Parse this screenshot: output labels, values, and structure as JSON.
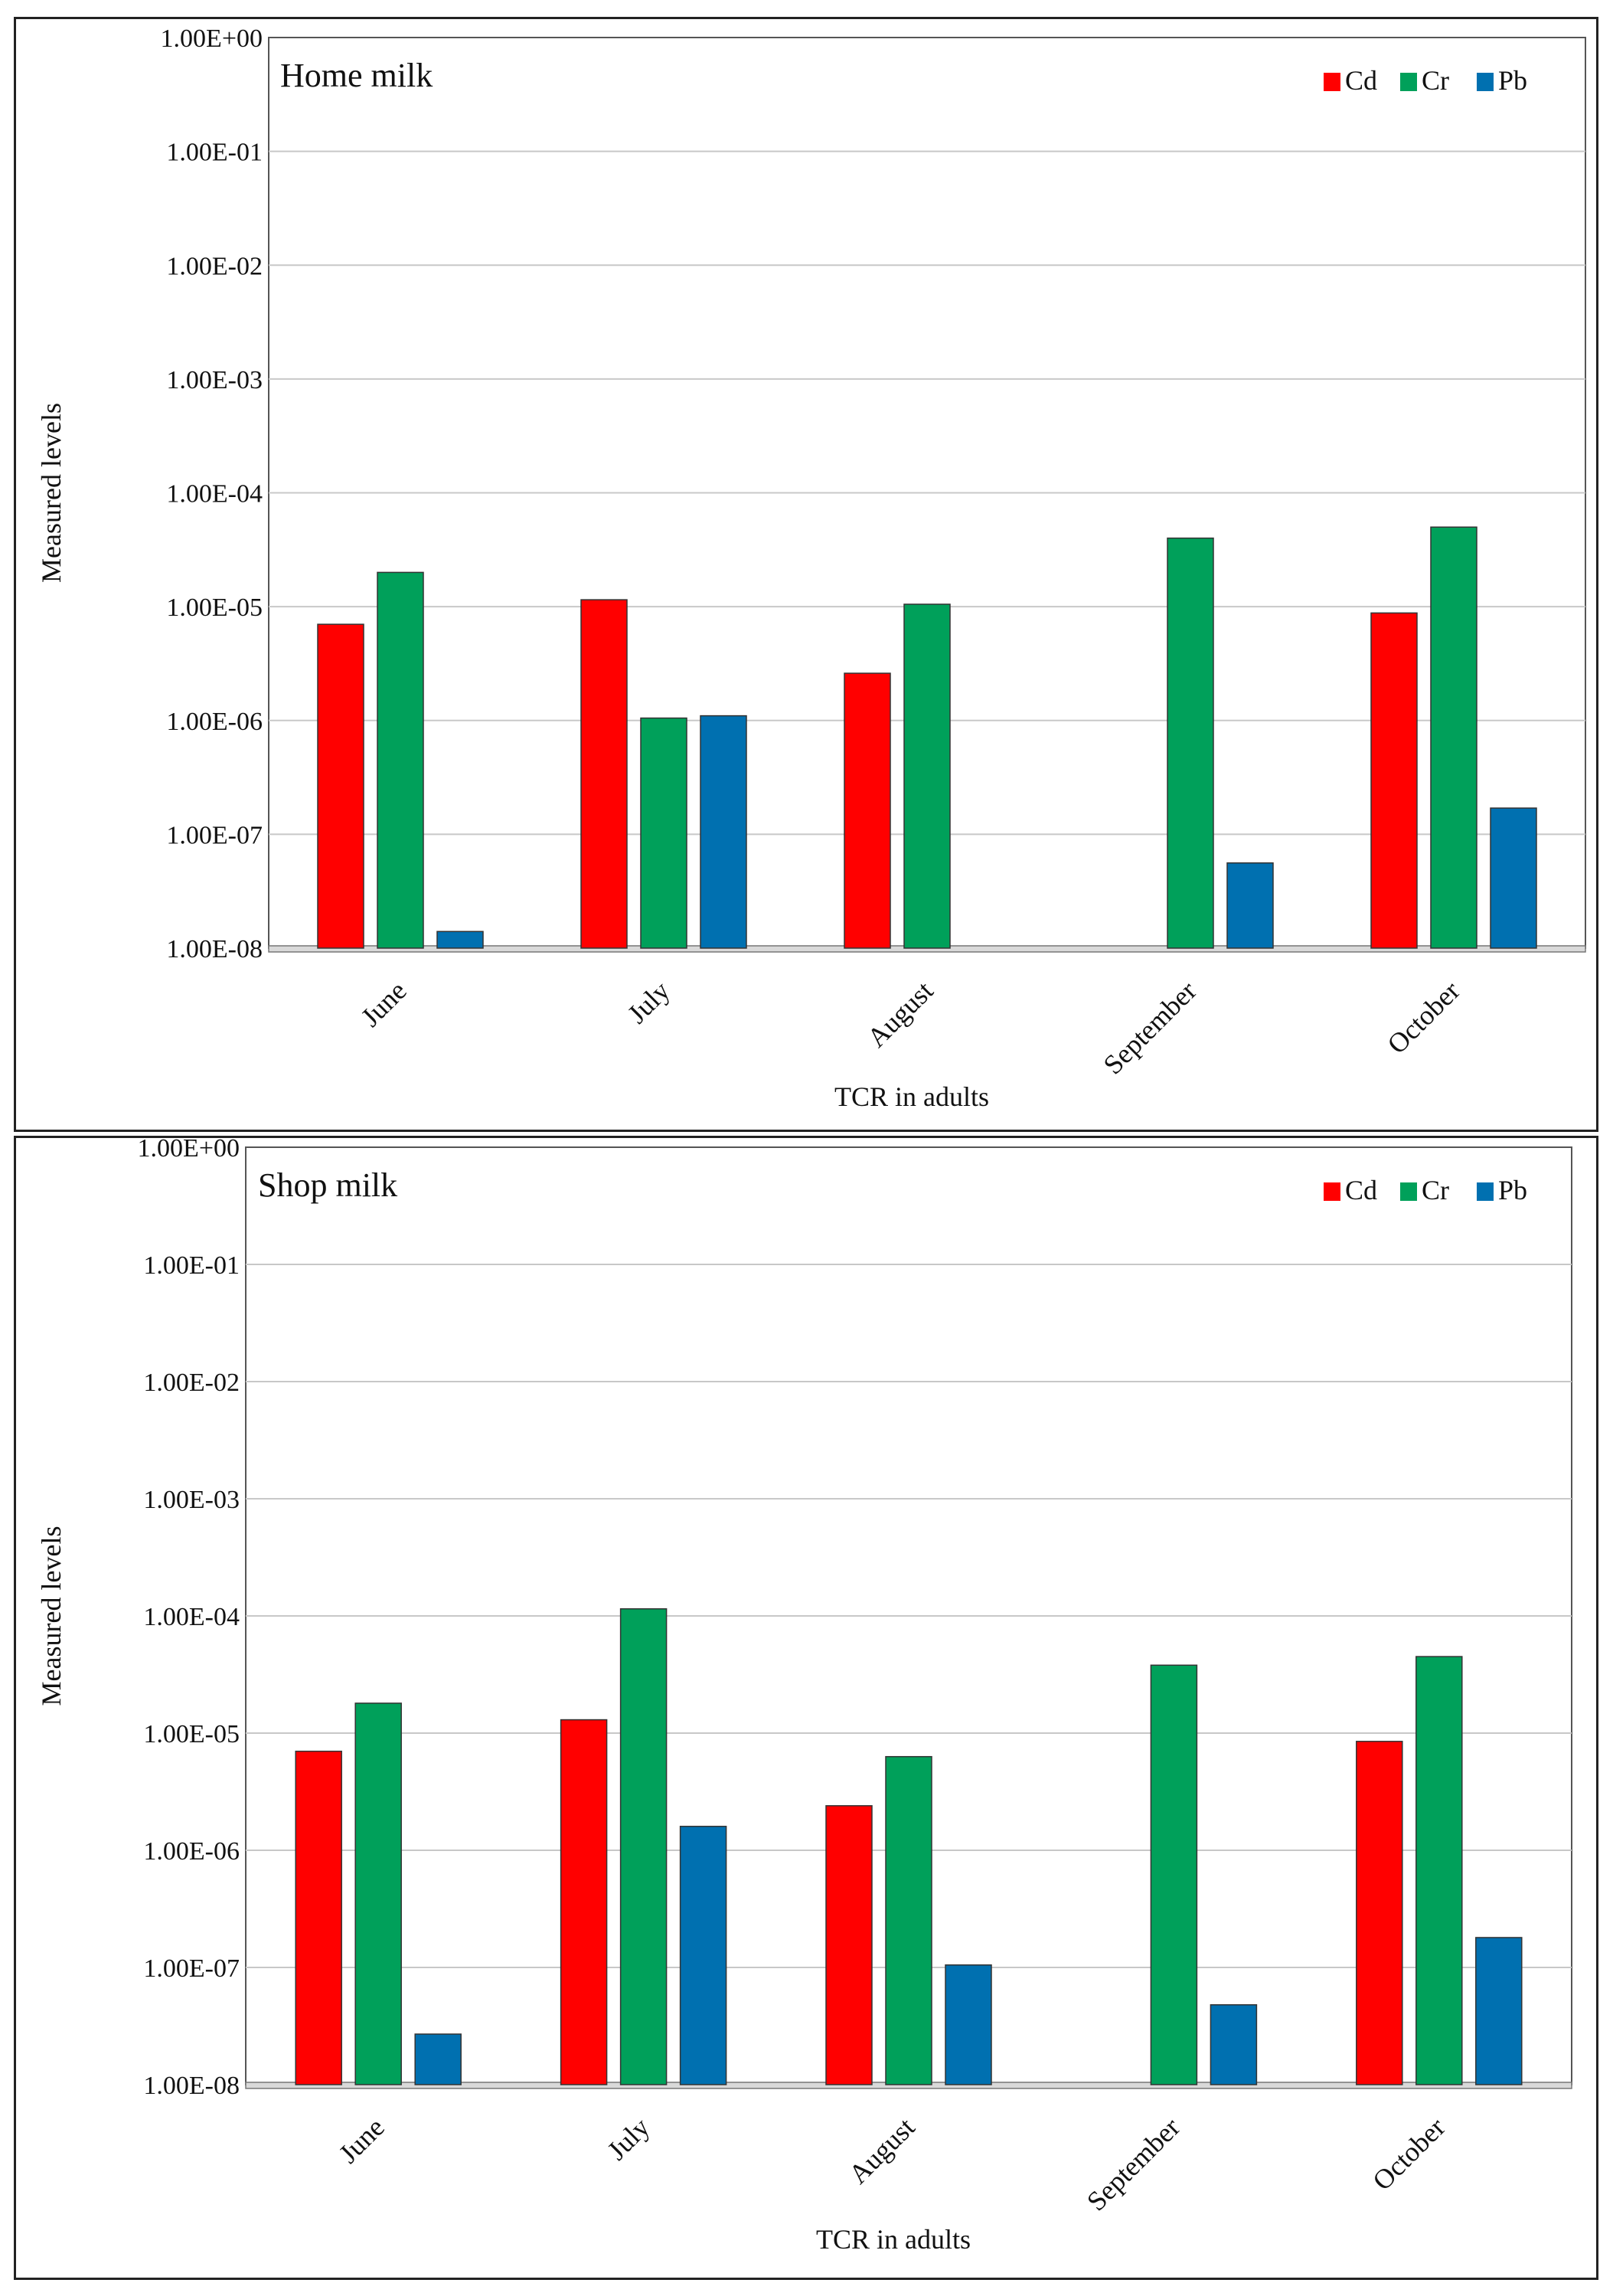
{
  "chart_data": [
    {
      "type": "bar",
      "title": "Home milk",
      "xlabel": "TCR in adults",
      "ylabel": "Measured levels",
      "yscale": "log",
      "ylim": [
        1e-08,
        1
      ],
      "yticks": [
        "1.00E-08",
        "1.00E-07",
        "1.00E-06",
        "1.00E-05",
        "1.00E-04",
        "1.00E-03",
        "1.00E-02",
        "1.00E-01",
        "1.00E+00"
      ],
      "legend_position": "top-right",
      "categories": [
        "June",
        "July",
        "August",
        "September",
        "October"
      ],
      "series": [
        {
          "name": "Cd",
          "color": "#ff0000",
          "values": [
            7e-06,
            1.15e-05,
            2.6e-06,
            null,
            8.8e-06
          ]
        },
        {
          "name": "Cr",
          "color": "#00a05a",
          "values": [
            2e-05,
            1.05e-06,
            1.05e-05,
            4e-05,
            5e-05
          ]
        },
        {
          "name": "Pb",
          "color": "#0070b0",
          "values": [
            1.4e-08,
            1.1e-06,
            null,
            5.6e-08,
            1.7e-07
          ]
        }
      ]
    },
    {
      "type": "bar",
      "title": "Shop milk",
      "xlabel": "TCR in adults",
      "ylabel": "Measured levels",
      "yscale": "log",
      "ylim": [
        1e-08,
        1
      ],
      "yticks": [
        "1.00E-08",
        "1.00E-07",
        "1.00E-06",
        "1.00E-05",
        "1.00E-04",
        "1.00E-03",
        "1.00E-02",
        "1.00E-01",
        "1.00E+00"
      ],
      "legend_position": "top-right",
      "categories": [
        "June",
        "July",
        "August",
        "September",
        "October"
      ],
      "series": [
        {
          "name": "Cd",
          "color": "#ff0000",
          "values": [
            7e-06,
            1.3e-05,
            2.4e-06,
            null,
            8.5e-06
          ]
        },
        {
          "name": "Cr",
          "color": "#00a05a",
          "values": [
            1.8e-05,
            0.000115,
            6.3e-06,
            3.8e-05,
            4.5e-05
          ]
        },
        {
          "name": "Pb",
          "color": "#0070b0",
          "values": [
            2.7e-08,
            1.6e-06,
            1.05e-07,
            4.8e-08,
            1.8e-07
          ]
        }
      ]
    }
  ]
}
